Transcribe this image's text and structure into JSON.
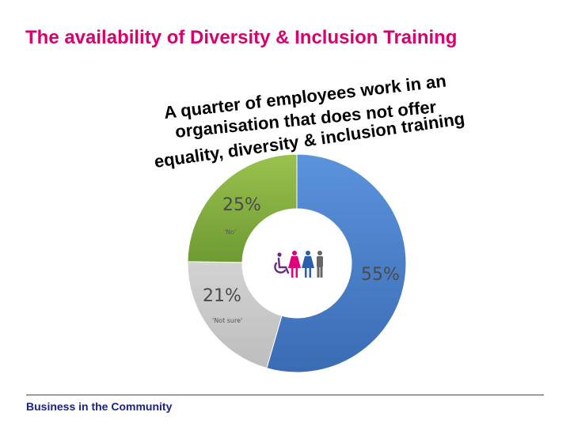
{
  "slide": {
    "title": "The availability of Diversity & Inclusion Training",
    "footer": "Business in the Community"
  },
  "callout": {
    "lines": [
      "A quarter of employees work in an",
      "organisation that does not offer",
      "equality, diversity & inclusion training"
    ]
  },
  "chart_data": {
    "type": "pie",
    "variant": "donut",
    "slices": [
      {
        "label": "55%",
        "value": 55,
        "sublabel": "",
        "color": "#4a7fc9"
      },
      {
        "label": "21%",
        "value": 21,
        "sublabel": "'Not sure'",
        "color": "#c6c6c6"
      },
      {
        "label": "25%",
        "value": 25,
        "sublabel": "'No'",
        "color": "#83ab3f"
      }
    ],
    "center_icons": [
      "wheelchair-user-icon",
      "woman-icon",
      "woman-icon",
      "man-icon"
    ],
    "icon_colors": [
      "#6a2c82",
      "#e0007a",
      "#2b5fae",
      "#666666"
    ]
  }
}
